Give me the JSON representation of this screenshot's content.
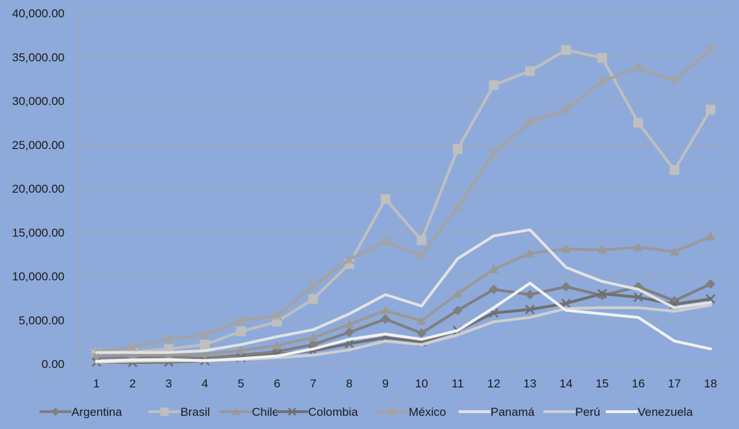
{
  "chart_data": {
    "type": "line",
    "title": "",
    "xlabel": "",
    "ylabel": "",
    "ylim": [
      0,
      40000
    ],
    "yticks": [
      0,
      5000,
      10000,
      15000,
      20000,
      25000,
      30000,
      35000,
      40000
    ],
    "ytick_labels": [
      "0.00",
      "5,000.00",
      "10,000.00",
      "15,000.00",
      "20,000.00",
      "25,000.00",
      "30,000.00",
      "35,000.00",
      "40,000.00"
    ],
    "categories": [
      "1",
      "2",
      "3",
      "4",
      "5",
      "6",
      "7",
      "8",
      "9",
      "10",
      "11",
      "12",
      "13",
      "14",
      "15",
      "16",
      "17",
      "18"
    ],
    "grid": true,
    "legend_position": "bottom",
    "series": [
      {
        "name": "Argentina",
        "color": "#7f7f7f",
        "marker": "diamond",
        "width": 4,
        "values": [
          700,
          750,
          750,
          650,
          1000,
          1400,
          2200,
          3600,
          5100,
          3500,
          6100,
          8500,
          7900,
          8800,
          7800,
          8800,
          7200,
          9100
        ]
      },
      {
        "name": "Brasil",
        "color": "#bfbfbf",
        "marker": "square",
        "width": 4,
        "values": [
          1300,
          1350,
          1700,
          2200,
          3700,
          4800,
          7400,
          11400,
          18800,
          14100,
          24500,
          31800,
          33400,
          35800,
          34900,
          27500,
          22100,
          29000
        ]
      },
      {
        "name": "Chile",
        "color": "#999999",
        "marker": "triangle",
        "width": 4,
        "values": [
          900,
          1000,
          1000,
          1100,
          1500,
          2100,
          3000,
          4500,
          6100,
          4900,
          8000,
          10800,
          12600,
          13100,
          13000,
          13300,
          12800,
          14500
        ]
      },
      {
        "name": "Colombia",
        "color": "#6f6f6f",
        "marker": "x",
        "width": 4,
        "values": [
          200,
          150,
          200,
          350,
          700,
          1100,
          1500,
          2300,
          3000,
          2500,
          3800,
          5800,
          6200,
          6900,
          8000,
          7600,
          6800,
          7400
        ]
      },
      {
        "name": "México",
        "color": "#a3a3a3",
        "marker": "star",
        "width": 4,
        "values": [
          1400,
          1900,
          2800,
          3300,
          4900,
          5500,
          8900,
          11900,
          13900,
          12400,
          17900,
          24000,
          27600,
          29000,
          32200,
          33800,
          32300,
          35900
        ]
      },
      {
        "name": "Panamá",
        "color": "#e3e3e3",
        "marker": "none",
        "width": 4,
        "values": [
          1300,
          1300,
          1300,
          1500,
          2200,
          3100,
          3900,
          5700,
          7900,
          6600,
          12000,
          14600,
          15300,
          11000,
          9400,
          8500,
          6400,
          7000
        ]
      },
      {
        "name": "Perú",
        "color": "#cfcfcf",
        "marker": "none",
        "width": 4,
        "values": [
          200,
          300,
          350,
          400,
          500,
          700,
          1000,
          1600,
          2600,
          2200,
          3300,
          4800,
          5300,
          6300,
          6400,
          6400,
          6000,
          6700
        ]
      },
      {
        "name": "Venezuela",
        "color": "#f2f2f2",
        "marker": "none",
        "width": 4,
        "values": [
          300,
          450,
          500,
          350,
          600,
          900,
          1700,
          2800,
          3400,
          2800,
          3800,
          6400,
          9200,
          6100,
          5700,
          5300,
          2600,
          1700
        ]
      }
    ]
  }
}
